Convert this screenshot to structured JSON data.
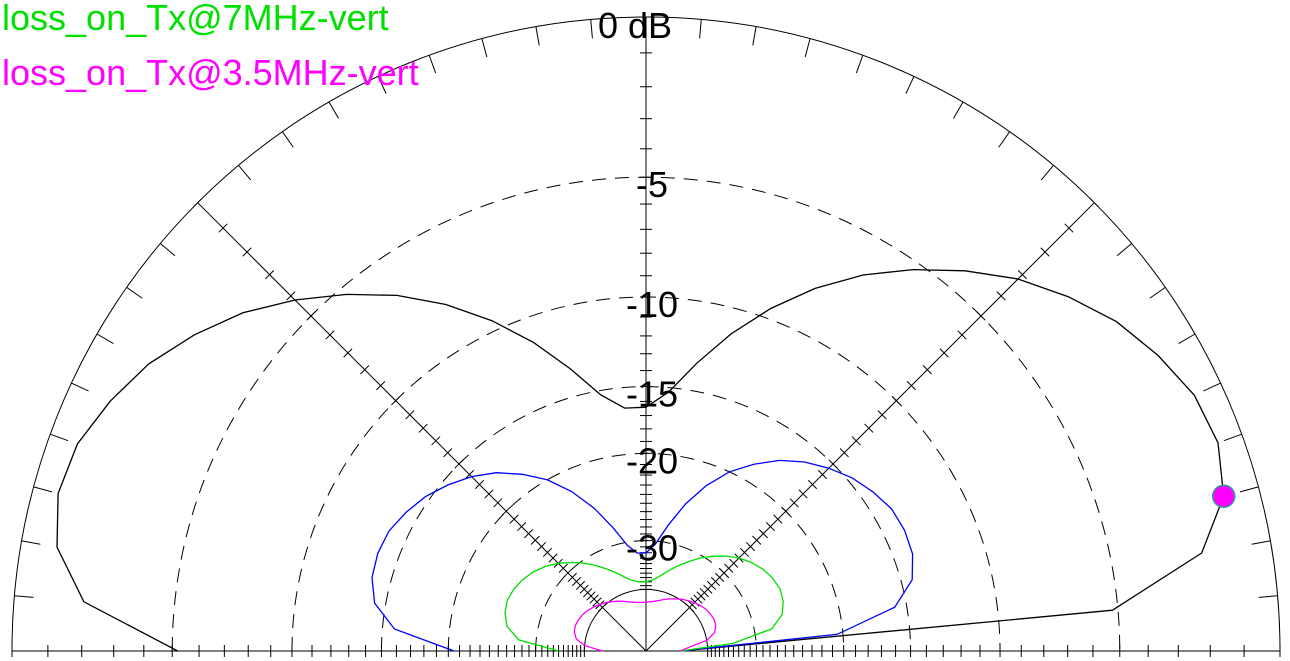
{
  "chart_data": {
    "type": "polar-elevation",
    "title": "",
    "scale_unit_label": "0 dB",
    "ring_labels": [
      "-5",
      "-10",
      "-15",
      "-20",
      "-30"
    ],
    "ring_levels_db": [
      -5,
      -10,
      -15,
      -20,
      -30
    ],
    "elevation_range_deg": [
      0,
      180
    ],
    "series": [
      {
        "name": "",
        "color": "#000000",
        "elevation_deg": [
          0,
          5,
          10,
          15,
          20,
          25,
          30,
          35,
          40,
          45,
          50,
          55,
          60,
          65,
          70,
          75,
          80,
          85,
          90,
          95,
          100,
          105,
          110,
          115,
          120,
          125,
          130,
          135,
          140,
          145,
          150,
          155,
          160,
          165,
          170,
          175,
          180
        ],
        "gain_db": [
          -50,
          -5.2,
          -2.0,
          -1.0,
          -0.7,
          -0.8,
          -1.2,
          -1.7,
          -2.4,
          -3.2,
          -4.2,
          -5.3,
          -6.5,
          -7.9,
          -9.5,
          -11.3,
          -13.3,
          -15.3,
          -16.4,
          -16.4,
          -15.3,
          -13.3,
          -11.3,
          -9.5,
          -7.9,
          -6.5,
          -5.3,
          -4.2,
          -3.2,
          -2.4,
          -1.7,
          -1.2,
          -0.8,
          -0.7,
          -1.0,
          -2.0,
          -5.2
        ]
      },
      {
        "name": "",
        "color": "#0000ff",
        "elevation_deg": [
          0,
          5,
          10,
          15,
          20,
          25,
          30,
          35,
          40,
          45,
          50,
          55,
          60,
          65,
          70,
          75,
          80,
          85,
          90,
          95,
          100,
          105,
          110,
          115,
          120,
          125,
          130,
          135,
          140,
          145,
          150,
          155,
          160,
          165,
          170,
          175,
          180
        ],
        "gain_db": [
          -50,
          -20.5,
          -15.8,
          -14.3,
          -13.8,
          -13.7,
          -13.8,
          -14.2,
          -14.7,
          -15.4,
          -16.2,
          -17.2,
          -18.5,
          -20.0,
          -22.0,
          -24.5,
          -27.5,
          -30.5,
          -32.0,
          -32.0,
          -30.5,
          -27.5,
          -24.5,
          -22.0,
          -20.0,
          -18.5,
          -17.2,
          -16.2,
          -15.4,
          -14.7,
          -14.2,
          -13.8,
          -13.7,
          -13.8,
          -14.3,
          -15.8,
          -20.5
        ]
      },
      {
        "name": "loss_on_Tx@7MHz-vert",
        "color": "#00e000",
        "elevation_deg": [
          0,
          5,
          10,
          15,
          20,
          25,
          30,
          35,
          40,
          45,
          50,
          55,
          60,
          65,
          70,
          75,
          80,
          85,
          90,
          95,
          100,
          105,
          110,
          115,
          120,
          125,
          130,
          135,
          140,
          145,
          150,
          155,
          160,
          165,
          170,
          175,
          180
        ],
        "gain_db": [
          -50,
          -34,
          -27.5,
          -25.8,
          -25.2,
          -25.0,
          -25.2,
          -25.6,
          -26.2,
          -27.0,
          -28.0,
          -29.2,
          -30.5,
          -32.0,
          -33.5,
          -35.0,
          -36.5,
          -37.5,
          -38.0,
          -38.0,
          -37.5,
          -36.5,
          -35.0,
          -33.5,
          -32.0,
          -30.5,
          -29.2,
          -28.0,
          -27.0,
          -26.2,
          -25.6,
          -25.2,
          -25.0,
          -25.2,
          -25.8,
          -27.5,
          -34
        ]
      },
      {
        "name": "loss_on_Tx@3.5MHz-vert",
        "color": "#ff00ff",
        "elevation_deg": [
          0,
          5,
          10,
          15,
          20,
          25,
          30,
          35,
          40,
          45,
          50,
          55,
          60,
          65,
          70,
          75,
          80,
          85,
          90,
          95,
          100,
          105,
          110,
          115,
          120,
          125,
          130,
          135,
          140,
          145,
          150,
          155,
          160,
          165,
          170,
          175,
          180
        ],
        "gain_db": [
          -50,
          -46,
          -40,
          -37.6,
          -36.8,
          -36.6,
          -36.8,
          -37.1,
          -37.6,
          -38.2,
          -38.9,
          -39.6,
          -40.4,
          -41.2,
          -42.0,
          -42.8,
          -43.4,
          -43.8,
          -44.0,
          -44.0,
          -43.8,
          -43.4,
          -42.8,
          -42.0,
          -41.2,
          -40.4,
          -39.6,
          -38.9,
          -38.2,
          -37.6,
          -37.1,
          -36.8,
          -36.6,
          -36.8,
          -37.6,
          -40,
          -46
        ]
      }
    ],
    "marker": {
      "elevation_deg": 15,
      "gain_db": -1.0,
      "color": "#ff00ff"
    },
    "legend_position": "top-left"
  }
}
